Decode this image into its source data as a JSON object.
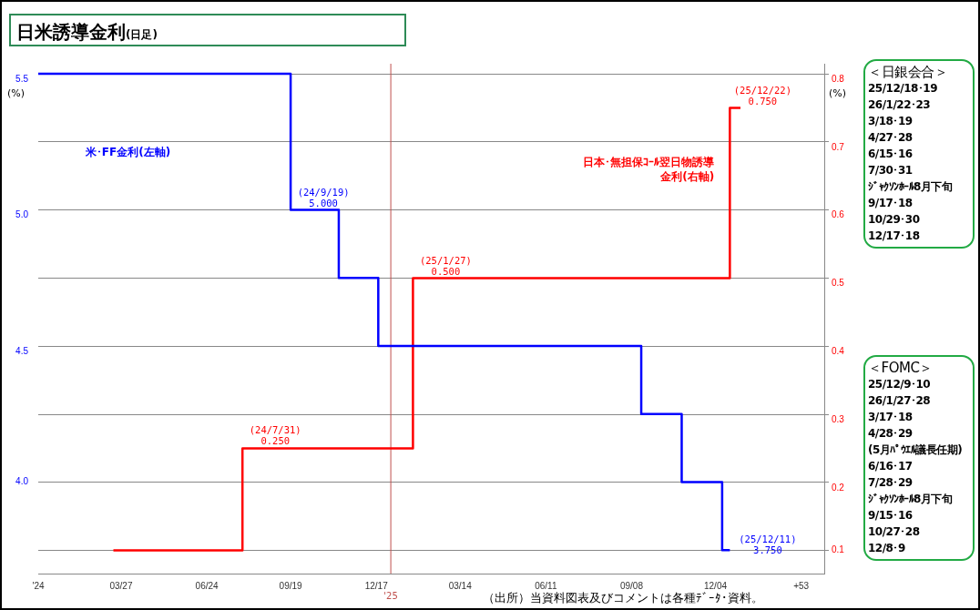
{
  "chart_data": [
    {
      "type": "step",
      "title": "日米誘導金利",
      "subtitle": "(日足)",
      "ylabel": "(%)",
      "y2label": "(%)",
      "xlim": [
        "2024-01-01",
        "2026-03-27"
      ],
      "xticks": [
        {
          "value": "2024-01-01",
          "label": "'24"
        },
        {
          "value": "2024-03-27",
          "label": "03/27"
        },
        {
          "value": "2024-06-24",
          "label": "06/24"
        },
        {
          "value": "2024-09-19",
          "label": "09/19"
        },
        {
          "value": "2024-12-17",
          "label": "12/17"
        },
        {
          "value": "2025-03-14",
          "label": "03/14"
        },
        {
          "value": "2025-06-11",
          "label": "06/11"
        },
        {
          "value": "2025-09-08",
          "label": "09/08"
        },
        {
          "value": "2025-12-04",
          "label": "12/04"
        },
        {
          "value": "2026-03-03",
          "label": "+53"
        }
      ],
      "ylim": [
        3.664,
        5.537
      ],
      "yticks": [
        {
          "value": 4,
          "label": "4.0"
        },
        {
          "value": 4.5,
          "label": "4.5"
        },
        {
          "value": 5,
          "label": "5.0"
        },
        {
          "value": 5.5,
          "label": "5.5"
        }
      ],
      "y2lim": [
        0.066,
        0.815
      ],
      "y2ticks": [
        0.1,
        0.2,
        0.3,
        0.4,
        0.5,
        0.6,
        0.7,
        0.8
      ],
      "grid": "y",
      "legend": false,
      "marker": "none",
      "ref_lines": [
        {
          "axis": "x",
          "value": "2025-01-01",
          "label": "'25",
          "color": "#c0504d"
        }
      ],
      "series": [
        {
          "name": "米･FF金利(左軸)",
          "type": "step",
          "color": "#0000ff",
          "x": [
            "2024-01-01",
            "2024-09-19",
            "2024-11-08",
            "2024-12-19",
            "2025-09-18",
            "2025-10-30",
            "2025-12-11",
            "2025-12-19"
          ],
          "values": [
            5.5,
            5.0,
            4.75,
            4.5,
            4.25,
            4.0,
            3.75,
            3.75
          ],
          "value_labels": [
            null,
            "(24/9/19)\n5.000",
            null,
            null,
            null,
            null,
            "(25/12/11)\n3.750",
            null
          ]
        },
        {
          "name": "日本･無担保ｺｰﾙ翌日物誘導金利(右軸)",
          "type": "step",
          "axis": "y2",
          "color": "#ff0000",
          "x": [
            "2024-03-19",
            "2024-07-31",
            "2025-01-24",
            "2025-12-19",
            "2025-12-30"
          ],
          "values": [
            0.1,
            0.25,
            0.5,
            0.75,
            0.75
          ],
          "value_labels": [
            null,
            "(24/7/31)\n0.250",
            "(25/1/27)\n0.500",
            "(25/12/22)\n0.750",
            null
          ]
        }
      ],
      "annotations": [
        "（出所）当資料図表及びコメントは各種ﾃﾞｰﾀ･資料。"
      ]
    },
    {
      "type": "other",
      "title": "＜日銀会合＞",
      "annotations": [
        "25/12/18･19",
        "26/1/22･23",
        "3/18･19",
        "4/27･28",
        "6/15･16",
        "7/30･31",
        "ｼﾞｬｸｿﾝﾎｰﾙ8月下旬",
        "9/17･18",
        "10/29･30",
        "12/17･18"
      ]
    },
    {
      "type": "other",
      "title": "＜FOMC＞",
      "annotations": [
        "25/12/9･10",
        "26/1/27･28",
        "3/17･18",
        "4/28･29",
        "(5月ﾊﾟｳｴﾙ議長任期)",
        "6/16･17",
        "7/28･29",
        "ｼﾞｬｸｿﾝﾎｰﾙ8月下旬",
        "9/15･16",
        "10/27･28",
        "12/8･9"
      ]
    }
  ]
}
